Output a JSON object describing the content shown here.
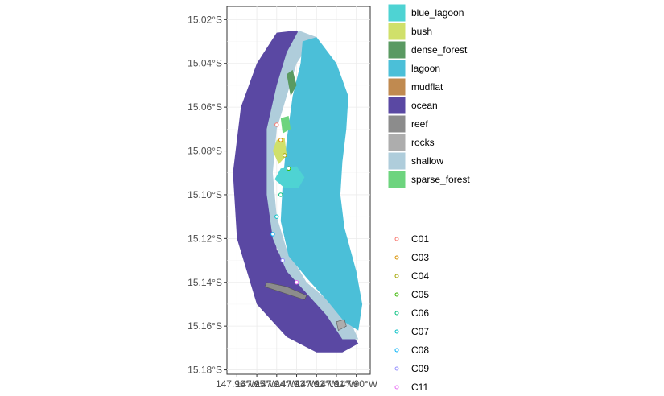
{
  "chart_data": {
    "type": "map",
    "title": "",
    "xlabel": "",
    "ylabel": "",
    "grid": true,
    "legend_position": "right",
    "xlim": [
      -147.965,
      -147.893
    ],
    "ylim": [
      -15.182,
      -15.014
    ],
    "y_ticks": [
      {
        "value": -15.02,
        "label": "15.02°S"
      },
      {
        "value": -15.04,
        "label": "15.04°S"
      },
      {
        "value": -15.06,
        "label": "15.06°S"
      },
      {
        "value": -15.08,
        "label": "15.08°S"
      },
      {
        "value": -15.1,
        "label": "15.10°S"
      },
      {
        "value": -15.12,
        "label": "15.12°S"
      },
      {
        "value": -15.14,
        "label": "15.14°S"
      },
      {
        "value": -15.16,
        "label": "15.16°S"
      },
      {
        "value": -15.18,
        "label": "15.18°S"
      }
    ],
    "x_ticks": [
      {
        "value": -147.96,
        "label": "147.96°W"
      },
      {
        "value": -147.95,
        "label": "147.95°W"
      },
      {
        "value": -147.94,
        "label": "147.94°W"
      },
      {
        "value": -147.93,
        "label": "147.93°W"
      },
      {
        "value": -147.92,
        "label": "147.92°W"
      },
      {
        "value": -147.91,
        "label": "147.91°W"
      },
      {
        "value": -147.9,
        "label": "147.90°W"
      }
    ],
    "habitat_legend": [
      {
        "name": "blue_lagoon",
        "color": "#4ed3d3"
      },
      {
        "name": "bush",
        "color": "#d0e06a"
      },
      {
        "name": "dense_forest",
        "color": "#5a9a62"
      },
      {
        "name": "lagoon",
        "color": "#4bbfd8"
      },
      {
        "name": "mudflat",
        "color": "#c08a50"
      },
      {
        "name": "ocean",
        "color": "#5a48a3"
      },
      {
        "name": "reef",
        "color": "#8c8c8c"
      },
      {
        "name": "rocks",
        "color": "#adadad"
      },
      {
        "name": "shallow",
        "color": "#afcddb"
      },
      {
        "name": "sparse_forest",
        "color": "#6dd47e"
      }
    ],
    "site_legend": [
      {
        "name": "C01",
        "color": "#f8766d"
      },
      {
        "name": "C03",
        "color": "#d89000"
      },
      {
        "name": "C04",
        "color": "#a3a500"
      },
      {
        "name": "C05",
        "color": "#39b600"
      },
      {
        "name": "C06",
        "color": "#00bf7d"
      },
      {
        "name": "C07",
        "color": "#00bfc4"
      },
      {
        "name": "C08",
        "color": "#00b0f6"
      },
      {
        "name": "C09",
        "color": "#9590ff"
      },
      {
        "name": "C11",
        "color": "#e76bf3"
      }
    ],
    "polygons": [
      {
        "habitat": "ocean",
        "coords": [
          [
            -147.94,
            -15.026
          ],
          [
            -147.93,
            -15.025
          ],
          [
            -147.925,
            -15.03
          ],
          [
            -147.932,
            -15.04
          ],
          [
            -147.937,
            -15.05
          ],
          [
            -147.942,
            -15.065
          ],
          [
            -147.944,
            -15.085
          ],
          [
            -147.943,
            -15.105
          ],
          [
            -147.94,
            -15.125
          ],
          [
            -147.93,
            -15.14
          ],
          [
            -147.915,
            -15.15
          ],
          [
            -147.905,
            -15.16
          ],
          [
            -147.899,
            -15.168
          ],
          [
            -147.907,
            -15.172
          ],
          [
            -147.92,
            -15.172
          ],
          [
            -147.935,
            -15.165
          ],
          [
            -147.95,
            -15.15
          ],
          [
            -147.96,
            -15.12
          ],
          [
            -147.962,
            -15.09
          ],
          [
            -147.958,
            -15.06
          ],
          [
            -147.95,
            -15.04
          ]
        ]
      },
      {
        "habitat": "shallow",
        "coords": [
          [
            -147.929,
            -15.025
          ],
          [
            -147.92,
            -15.028
          ],
          [
            -147.925,
            -15.033
          ],
          [
            -147.93,
            -15.04
          ],
          [
            -147.935,
            -15.055
          ],
          [
            -147.94,
            -15.07
          ],
          [
            -147.942,
            -15.09
          ],
          [
            -147.94,
            -15.11
          ],
          [
            -147.935,
            -15.125
          ],
          [
            -147.925,
            -15.14
          ],
          [
            -147.912,
            -15.15
          ],
          [
            -147.903,
            -15.158
          ],
          [
            -147.899,
            -15.166
          ],
          [
            -147.907,
            -15.166
          ],
          [
            -147.915,
            -15.155
          ],
          [
            -147.925,
            -15.145
          ],
          [
            -147.935,
            -15.135
          ],
          [
            -147.942,
            -15.12
          ],
          [
            -147.945,
            -15.1
          ],
          [
            -147.945,
            -15.07
          ],
          [
            -147.94,
            -15.05
          ],
          [
            -147.935,
            -15.035
          ]
        ]
      },
      {
        "habitat": "lagoon",
        "coords": [
          [
            -147.927,
            -15.03
          ],
          [
            -147.92,
            -15.028
          ],
          [
            -147.91,
            -15.04
          ],
          [
            -147.904,
            -15.055
          ],
          [
            -147.905,
            -15.07
          ],
          [
            -147.907,
            -15.085
          ],
          [
            -147.908,
            -15.1
          ],
          [
            -147.906,
            -15.115
          ],
          [
            -147.9,
            -15.135
          ],
          [
            -147.897,
            -15.15
          ],
          [
            -147.899,
            -15.162
          ],
          [
            -147.906,
            -15.158
          ],
          [
            -147.915,
            -15.148
          ],
          [
            -147.925,
            -15.138
          ],
          [
            -147.934,
            -15.128
          ],
          [
            -147.938,
            -15.112
          ],
          [
            -147.937,
            -15.095
          ],
          [
            -147.935,
            -15.075
          ],
          [
            -147.932,
            -15.055
          ],
          [
            -147.928,
            -15.04
          ]
        ]
      },
      {
        "habitat": "blue_lagoon",
        "coords": [
          [
            -147.938,
            -15.088
          ],
          [
            -147.93,
            -15.087
          ],
          [
            -147.926,
            -15.092
          ],
          [
            -147.929,
            -15.097
          ],
          [
            -147.936,
            -15.097
          ],
          [
            -147.941,
            -15.093
          ]
        ]
      },
      {
        "habitat": "bush",
        "coords": [
          [
            -147.94,
            -15.075
          ],
          [
            -147.936,
            -15.074
          ],
          [
            -147.935,
            -15.082
          ],
          [
            -147.939,
            -15.086
          ],
          [
            -147.942,
            -15.08
          ]
        ]
      },
      {
        "habitat": "dense_forest",
        "coords": [
          [
            -147.935,
            -15.045
          ],
          [
            -147.932,
            -15.043
          ],
          [
            -147.93,
            -15.05
          ],
          [
            -147.933,
            -15.055
          ]
        ]
      },
      {
        "habitat": "sparse_forest",
        "coords": [
          [
            -147.938,
            -15.065
          ],
          [
            -147.934,
            -15.064
          ],
          [
            -147.933,
            -15.07
          ],
          [
            -147.937,
            -15.072
          ]
        ]
      },
      {
        "habitat": "reef",
        "coords": [
          [
            -147.945,
            -15.14
          ],
          [
            -147.935,
            -15.142
          ],
          [
            -147.925,
            -15.146
          ],
          [
            -147.926,
            -15.148
          ],
          [
            -147.936,
            -15.145
          ],
          [
            -147.946,
            -15.142
          ]
        ]
      },
      {
        "habitat": "rocks",
        "coords": [
          [
            -147.91,
            -15.158
          ],
          [
            -147.906,
            -15.157
          ],
          [
            -147.905,
            -15.16
          ],
          [
            -147.909,
            -15.162
          ]
        ]
      }
    ],
    "sites": [
      {
        "site": "C01",
        "x": -147.94,
        "y": -15.068
      },
      {
        "site": "C03",
        "x": -147.938,
        "y": -15.075
      },
      {
        "site": "C04",
        "x": -147.936,
        "y": -15.082
      },
      {
        "site": "C05",
        "x": -147.934,
        "y": -15.088
      },
      {
        "site": "C06",
        "x": -147.938,
        "y": -15.1
      },
      {
        "site": "C07",
        "x": -147.94,
        "y": -15.11
      },
      {
        "site": "C08",
        "x": -147.942,
        "y": -15.118
      },
      {
        "site": "C09",
        "x": -147.937,
        "y": -15.13
      },
      {
        "site": "C11",
        "x": -147.93,
        "y": -15.14
      }
    ]
  }
}
